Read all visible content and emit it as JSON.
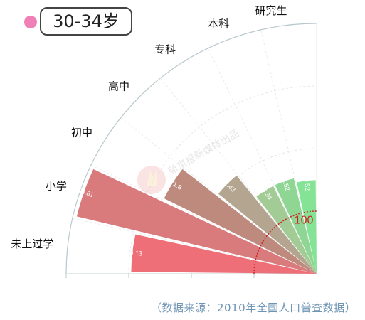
{
  "legend": {
    "age_group": "30-34岁",
    "dot_color": "#ef7fb6"
  },
  "source_note": "（数据来源：2010年全国人口普查数据）",
  "watermark": "新京报新媒体出品",
  "chart_data": {
    "type": "bar",
    "polar": true,
    "title": "",
    "categories": [
      "未上过学",
      "小学",
      "初中",
      "高中",
      "专科",
      "本科",
      "研究生"
    ],
    "values": [
      296.13,
      393.81,
      271.8,
      202.43,
      156.34,
      156.52,
      149.52
    ],
    "value_labels": [
      "296.13",
      "393.81",
      "271.8",
      "202.43",
      "156.34",
      "156.52",
      "149.52"
    ],
    "colors": [
      "#ef6f78",
      "#d97a7c",
      "#bd8a7d",
      "#b3a58f",
      "#a3cb95",
      "#8fd594",
      "#84e394"
    ],
    "reference_value": 100,
    "reference_label": "100",
    "reference_color": "#cc2222",
    "radial_max": 400,
    "grid": true
  }
}
